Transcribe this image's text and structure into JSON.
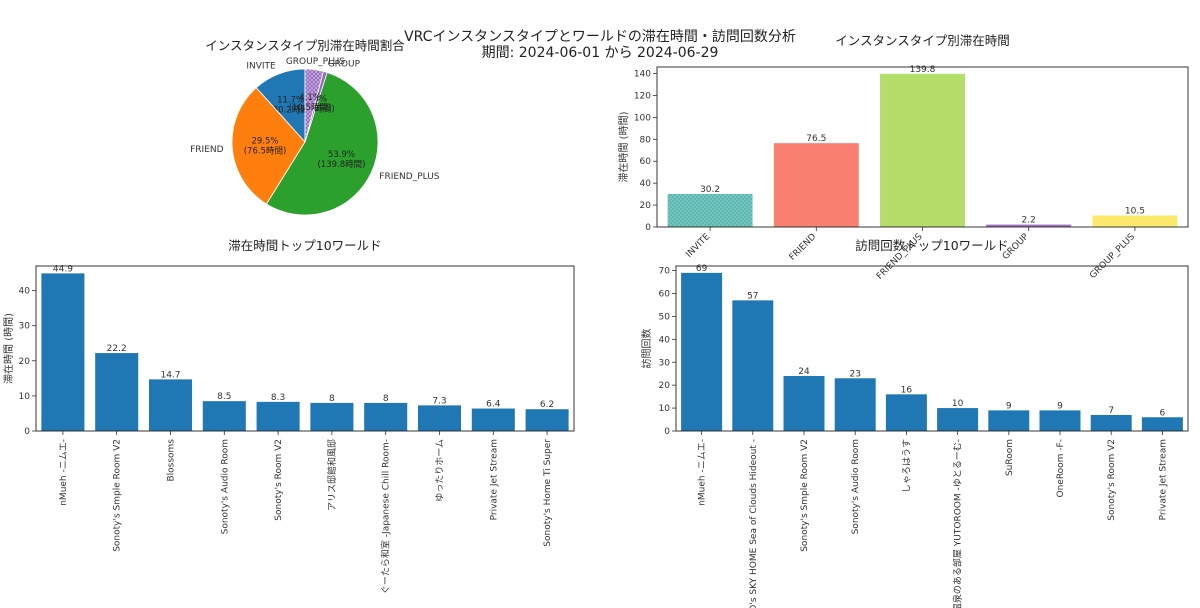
{
  "figure": {
    "title_line1": "VRCインスタンスタイプとワールドの滞在時間・訪問回数分析",
    "title_line2": "期間: 2024-06-01 から 2024-06-29"
  },
  "colors": {
    "pie": [
      "#1f77b4",
      "#ff7f0e",
      "#2ca02c",
      "#9467bd",
      "#d62728"
    ],
    "bar_top_right": [
      "#72c6c0",
      "#fa8072",
      "#b4dd6a",
      "#a070c0",
      "#fdea6c"
    ],
    "bar_default": "#1f77b4"
  },
  "chart_data": [
    {
      "type": "pie",
      "title": "インスタンスタイプ別滞在時間割合",
      "labels": [
        "INVITE",
        "FRIEND",
        "FRIEND_PLUS",
        "GROUP",
        "GROUP_PLUS"
      ],
      "values": [
        30.2,
        76.5,
        139.8,
        2.2,
        10.5
      ],
      "percent_labels": [
        "11.7%\n(30.2時間)",
        "29.5%\n(76.5時間)",
        "53.9%\n(139.8時間)",
        "0.8%\n(2.2時間)",
        "4.1%\n(10.5時間)"
      ]
    },
    {
      "type": "bar",
      "title": "インスタンスタイプ別滞在時間",
      "categories": [
        "INVITE",
        "FRIEND",
        "FRIEND_PLUS",
        "GROUP",
        "GROUP_PLUS"
      ],
      "values": [
        30.2,
        76.5,
        139.8,
        2.2,
        10.5
      ],
      "ylabel": "滞在時間 (時間)",
      "ylim": [
        0,
        146
      ],
      "yticks": [
        0,
        20,
        40,
        60,
        80,
        100,
        120,
        140
      ],
      "grid": false
    },
    {
      "type": "bar",
      "title": "滞在時間トップ10ワールド",
      "categories": [
        "nMueh -ニムエ-",
        "Sonoty's Smple Room V2",
        "Blossoms",
        "Sonoty's Audio Room",
        "Sonoty's Room V2",
        "アリス邸館和風邸",
        "ぐーたら和室 -Japanese Chill Room-",
        "ゆったりホーム",
        "Private Jet Stream",
        "Sonoty's Home Ti Super"
      ],
      "values": [
        44.9,
        22.2,
        14.7,
        8.5,
        8.3,
        8.0,
        8.0,
        7.3,
        6.4,
        6.2
      ],
      "ylabel": "滞在時間 (時間)",
      "ylim": [
        0,
        47
      ],
      "yticks": [
        0,
        10,
        20,
        30,
        40
      ],
      "grid": false
    },
    {
      "type": "bar",
      "title": "訪問回数トップ10ワールド",
      "categories": [
        "nMueh -ニムエ-",
        "SED's SKY HOME Sea of Clouds Hideout -",
        "Sonoty's Smple Room V2",
        "Sonoty's Audio Room",
        "しゃろはうす",
        "温泉のある部屋 YUTOROOM -ゆとるーむ-",
        "SuRoom",
        "OneRoom -F-",
        "Sonoty's Room V2",
        "Private Jet Stream"
      ],
      "values": [
        69,
        57,
        24,
        23,
        16,
        10,
        9,
        9,
        7,
        6
      ],
      "ylabel": "訪問回数",
      "ylim": [
        0,
        72
      ],
      "yticks": [
        0,
        10,
        20,
        30,
        40,
        50,
        60,
        70
      ],
      "grid": false
    }
  ]
}
